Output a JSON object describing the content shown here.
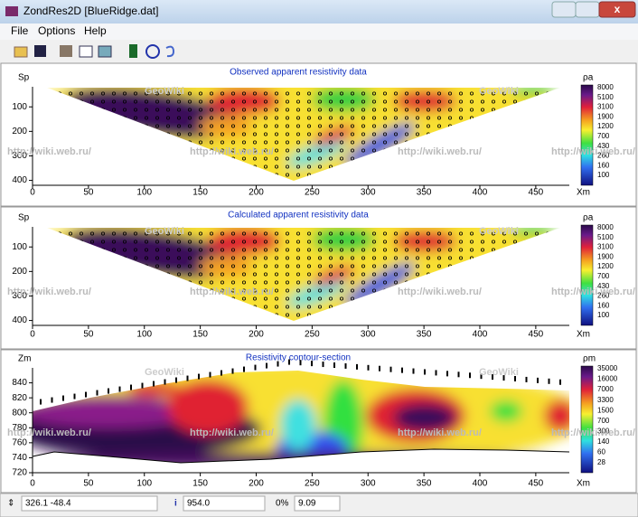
{
  "window": {
    "title": "ZondRes2D [BlueRidge.dat]"
  },
  "menu": [
    "File",
    "Options",
    "Help"
  ],
  "panels": [
    {
      "title": "Observed apparent resistivity data",
      "y_label": "Sp",
      "x_label": "Xm",
      "color_label": "ρa",
      "xlim": [
        0,
        480
      ],
      "xticks": [
        0,
        50,
        100,
        150,
        200,
        250,
        300,
        350,
        400,
        450
      ],
      "ylim": [
        18,
        420
      ],
      "yticks": [
        100,
        200,
        300,
        400
      ],
      "color_ticks": [
        8000,
        5100,
        3100,
        1900,
        1200,
        700,
        430,
        260,
        160,
        100
      ]
    },
    {
      "title": "Calculated apparent resistivity data",
      "y_label": "Sp",
      "x_label": "Xm",
      "color_label": "ρa",
      "xlim": [
        0,
        480
      ],
      "xticks": [
        0,
        50,
        100,
        150,
        200,
        250,
        300,
        350,
        400,
        450
      ],
      "ylim": [
        18,
        420
      ],
      "yticks": [
        100,
        200,
        300,
        400
      ],
      "color_ticks": [
        8000,
        5100,
        3100,
        1900,
        1200,
        700,
        430,
        260,
        160,
        100
      ]
    },
    {
      "title": "Resistivity contour-section",
      "y_label": "Zm",
      "x_label": "Xm",
      "color_label": "ρm",
      "xlim": [
        0,
        480
      ],
      "xticks": [
        0,
        50,
        100,
        150,
        200,
        250,
        300,
        350,
        400,
        450
      ],
      "ylim": [
        720,
        860
      ],
      "yticks": [
        720,
        740,
        760,
        780,
        800,
        820,
        840
      ],
      "color_ticks": [
        35000,
        16000,
        7000,
        3300,
        1500,
        700,
        300,
        140,
        60,
        28
      ]
    }
  ],
  "watermarks": [
    "GeoWiki",
    "http://wiki.web.ru/"
  ],
  "status": [
    "326.1 -48.4",
    "954.0",
    "0%",
    "9.09"
  ]
}
